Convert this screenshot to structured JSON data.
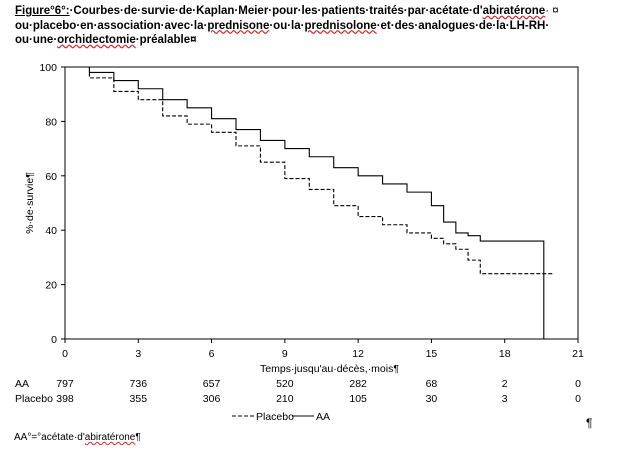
{
  "figure": {
    "title_prefix": "Figure°6°:",
    "title_line1": "·Courbes·de·survie·de·Kaplan·Meier·pour·les·patients·traités·par·acétate·d'",
    "title_line1_word": "abiratérone",
    "title_line1_end": "·  ¤",
    "title_line2_a": "ou·placebo·en·association·avec·la·",
    "title_line2_word1": "prednisone",
    "title_line2_b": "·ou·la·",
    "title_line2_word2": "prednisolone",
    "title_line2_c": "·et·des·analogues·de·la·LH-RH·",
    "title_line3_a": "ou·une·",
    "title_line3_word": "orchidectomie",
    "title_line3_b": "·préalable¤"
  },
  "footnote": {
    "prefix": "AA°=°acétate·d'",
    "word": "abiratérone",
    "suffix": "¶"
  },
  "pilcrow": "¶",
  "chart_data": {
    "type": "line",
    "xlabel": "Temps·jusqu'au·décès,·mois¶",
    "ylabel": "%·de·survie¶",
    "xlim": [
      0,
      21
    ],
    "ylim": [
      0,
      100
    ],
    "x_ticks": [
      0,
      3,
      6,
      9,
      12,
      15,
      18,
      21
    ],
    "y_ticks": [
      0,
      20,
      40,
      60,
      80,
      100
    ],
    "series": [
      {
        "name": "AA",
        "style": "solid",
        "color": "#000000",
        "x": [
          0,
          1,
          2,
          3,
          4,
          5,
          6,
          7,
          8,
          9,
          10,
          11,
          12,
          13,
          14,
          15,
          15.5,
          16,
          16.5,
          17,
          19,
          19.6,
          19.6
        ],
        "y": [
          100,
          98,
          95,
          92,
          88,
          85,
          81,
          77,
          73,
          70,
          67,
          63,
          60,
          57,
          54,
          49,
          43,
          39,
          38,
          36,
          36,
          36,
          0
        ]
      },
      {
        "name": "Placebo",
        "style": "dashed",
        "color": "#000000",
        "x": [
          0,
          1,
          2,
          3,
          4,
          5,
          6,
          7,
          8,
          9,
          10,
          11,
          12,
          13,
          14,
          15,
          15.5,
          16,
          16.5,
          17,
          19,
          20
        ],
        "y": [
          100,
          96,
          91,
          88,
          82,
          79,
          76,
          71,
          65,
          59,
          55,
          49,
          45,
          42,
          39,
          37,
          35,
          33,
          29,
          24,
          24,
          24
        ]
      }
    ],
    "at_risk": {
      "x": [
        0,
        3,
        6,
        9,
        12,
        15,
        18,
        21
      ],
      "rows": [
        {
          "label": "AA",
          "values": [
            "797",
            "736",
            "657",
            "520",
            "282",
            "68",
            "2",
            "0"
          ]
        },
        {
          "label": "Placebo",
          "values": [
            "398",
            "355",
            "306",
            "210",
            "105",
            "30",
            "3",
            "0"
          ]
        }
      ]
    },
    "legend": [
      {
        "label": "Placebo",
        "style": "dashed"
      },
      {
        "label": "AA",
        "style": "solid"
      }
    ]
  }
}
